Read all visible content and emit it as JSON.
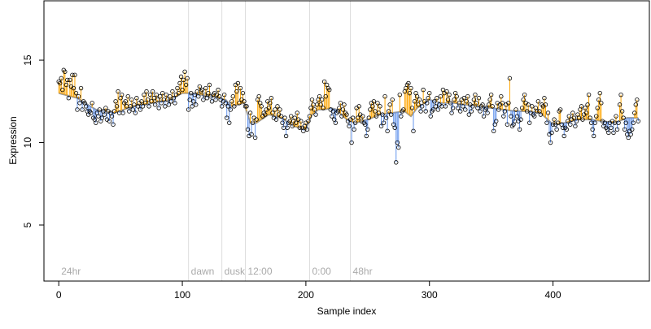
{
  "chart_data": {
    "type": "scatter",
    "title": "",
    "xlabel": "Sample index",
    "ylabel": "Expression",
    "xlim": [
      -12,
      478
    ],
    "ylim": [
      1.6,
      18.6
    ],
    "xticks": [
      0,
      100,
      200,
      300,
      400
    ],
    "yticks": [
      5,
      10,
      15
    ],
    "grid": false,
    "baseline_color": "#999999",
    "above_color": "#ffa500",
    "below_color": "#6495ed",
    "point_stroke": "#000000",
    "segments": [
      {
        "label": "24hr",
        "x": 0
      },
      {
        "label": "dawn",
        "x": 105
      },
      {
        "label": "dusk",
        "x": 132
      },
      {
        "label": "12:00",
        "x": 151
      },
      {
        "label": "0:00",
        "x": 203
      },
      {
        "label": "48hr",
        "x": 236
      }
    ],
    "series": [
      {
        "values": [
          13.7,
          13.6,
          13.9,
          13.2,
          14.4,
          14.3,
          13.5,
          13.8,
          12.7,
          13.8,
          13.4,
          14.1,
          13.3,
          14.1,
          13.0,
          12.0,
          12.8,
          12.4,
          13.3,
          12.0,
          12.5,
          12.4,
          12.2,
          11.9,
          11.7,
          11.9,
          11.8,
          12.4,
          11.5,
          11.4,
          11.2,
          11.8,
          11.6,
          12.0,
          11.3,
          11.5,
          11.9,
          11.7,
          12.1,
          11.4,
          11.9,
          11.3,
          11.8,
          11.6,
          11.1,
          11.9,
          12.5,
          12.2,
          13.1,
          11.8,
          12.7,
          12.9,
          11.8,
          12.4,
          12.5,
          12.2,
          12.8,
          11.9,
          12.2,
          12.6,
          12.0,
          12.3,
          11.8,
          12.7,
          12.2,
          12.4,
          12.0,
          12.5,
          12.2,
          12.9,
          12.4,
          13.1,
          12.6,
          12.2,
          12.9,
          12.5,
          13.1,
          12.7,
          12.3,
          12.9,
          12.6,
          12.1,
          12.8,
          12.4,
          13.0,
          12.6,
          12.2,
          12.9,
          12.6,
          12.3,
          12.8,
          12.5,
          13.1,
          12.7,
          12.4,
          12.9,
          13.3,
          13.0,
          13.6,
          14.0,
          13.2,
          13.8,
          14.3,
          13.5,
          13.9,
          12.0,
          12.6,
          13.0,
          12.2,
          12.5,
          12.9,
          12.3,
          13.1,
          12.8,
          13.4,
          13.1,
          13.2,
          12.6,
          12.9,
          13.3,
          12.7,
          13.0,
          13.5,
          12.8,
          12.5,
          12.9,
          13.0,
          12.6,
          12.9,
          13.2,
          12.8,
          12.6,
          12.2,
          12.5,
          12.9,
          12.4,
          11.5,
          12.2,
          11.2,
          12.0,
          12.5,
          12.8,
          12.2,
          13.5,
          13.1,
          13.6,
          12.4,
          13.3,
          12.6,
          13.0,
          12.5,
          12.2,
          12.2,
          10.8,
          10.4,
          11.8,
          10.5,
          11.2,
          11.5,
          10.3,
          11.4,
          12.6,
          12.8,
          12.4,
          12.2,
          11.6,
          11.8,
          11.7,
          12.0,
          12.5,
          12.1,
          12.4,
          12.7,
          11.8,
          11.5,
          12.0,
          11.4,
          12.2,
          11.7,
          12.0,
          11.6,
          11.2,
          10.9,
          11.5,
          10.4,
          10.9,
          11.2,
          11.3,
          11.6,
          11.0,
          11.3,
          11.5,
          11.2,
          11.8,
          11.4,
          10.9,
          11.3,
          10.9,
          10.7,
          11.0,
          11.2,
          10.8,
          11.3,
          11.6,
          12.1,
          12.6,
          12.3,
          12.0,
          11.7,
          12.3,
          12.6,
          12.8,
          12.3,
          12.6,
          12.1,
          13.7,
          12.8,
          13.5,
          13.3,
          13.2,
          12.0,
          11.6,
          11.9,
          11.4,
          11.2,
          11.8,
          11.9,
          12.1,
          12.4,
          11.6,
          12.0,
          12.3,
          11.8,
          11.7,
          11.3,
          11.0,
          11.4,
          10.0,
          11.5,
          10.8,
          11.2,
          12.1,
          11.5,
          12.2,
          11.7,
          11.3,
          11.6,
          11.2,
          11.1,
          10.4,
          10.8,
          11.5,
          12.0,
          12.4,
          12.2,
          12.5,
          11.9,
          11.6,
          12.4,
          11.8,
          12.2,
          11.0,
          11.7,
          11.2,
          12.8,
          11.5,
          10.7,
          11.9,
          12.3,
          11.7,
          12.6,
          11.1,
          10.9,
          8.8,
          10.0,
          9.7,
          12.9,
          11.6,
          11.9,
          12.0,
          13.1,
          13.3,
          13.5,
          13.6,
          13.0,
          13.3,
          12.1,
          10.7,
          12.5,
          13.0,
          12.8,
          12.3,
          12.6,
          11.9,
          12.2,
          13.2,
          12.5,
          11.9,
          12.4,
          12.7,
          13.0,
          11.6,
          11.9,
          12.0,
          12.5,
          12.2,
          12.7,
          12.0,
          12.3,
          12.8,
          12.2,
          13.2,
          13.0,
          12.2,
          13.1,
          12.6,
          12.9,
          12.4,
          11.8,
          12.1,
          12.6,
          13.0,
          12.8,
          12.1,
          12.4,
          11.9,
          12.6,
          12.2,
          12.7,
          12.0,
          12.5,
          12.8,
          11.7,
          12.3,
          11.9,
          12.2,
          12.6,
          12.9,
          12.4,
          12.1,
          12.7,
          11.9,
          12.2,
          12.3,
          11.6,
          12.0,
          12.1,
          11.8,
          12.3,
          12.6,
          12.9,
          12.2,
          10.7,
          11.1,
          11.3,
          12.4,
          12.0,
          12.3,
          12.8,
          12.4,
          11.6,
          11.9,
          12.3,
          11.1,
          12.4,
          13.9,
          11.6,
          11.0,
          11.1,
          11.3,
          12.0,
          11.6,
          11.3,
          10.8,
          11.4,
          12.1,
          12.6,
          12.9,
          12.4,
          11.9,
          12.3,
          11.2,
          11.8,
          12.2,
          11.7,
          11.6,
          12.1,
          11.9,
          12.5,
          11.9,
          11.7,
          12.3,
          12.2,
          12.7,
          12.3,
          11.2,
          11.8,
          10.5,
          10.0,
          10.6,
          11.1,
          11.4,
          11.1,
          10.8,
          11.2,
          11.9,
          12.0,
          11.1,
          10.9,
          10.4,
          10.9,
          10.8,
          11.3,
          11.6,
          11.1,
          11.4,
          11.8,
          11.5,
          11.0,
          11.3,
          11.7,
          11.5,
          12.0,
          12.2,
          11.4,
          11.7,
          12.1,
          11.8,
          12.3,
          12.9,
          11.5,
          11.2,
          10.8,
          10.4,
          11.2,
          11.6,
          12.1,
          12.6,
          13.0,
          12.4,
          11.3,
          11.0,
          11.2,
          10.9,
          10.8,
          10.6,
          11.2,
          10.9,
          11.3,
          10.6,
          11.2,
          11.6,
          10.8,
          11.2,
          12.3,
          12.9,
          11.9,
          11.5,
          10.8,
          11.2,
          10.5,
          10.3,
          10.7,
          10.5,
          10.8,
          11.2,
          11.8,
          12.3,
          12.6,
          11.3
        ]
      }
    ],
    "baseline": {
      "x": [
        0,
        15,
        30,
        45,
        60,
        75,
        90,
        100,
        105,
        115,
        125,
        135,
        140,
        145,
        150,
        155,
        160,
        170,
        180,
        190,
        195,
        200,
        205,
        210,
        215,
        220,
        225,
        230,
        235,
        240,
        250,
        260,
        270,
        280,
        285,
        290,
        300,
        310,
        320,
        330,
        340,
        350,
        360,
        370,
        380,
        390,
        400,
        410,
        420,
        430,
        440,
        450,
        460
      ],
      "y": [
        13.0,
        12.7,
        12.0,
        11.8,
        12.2,
        12.4,
        12.6,
        13.0,
        13.0,
        12.9,
        12.8,
        12.6,
        12.2,
        12.3,
        12.4,
        11.2,
        11.2,
        11.7,
        11.5,
        11.0,
        10.9,
        10.8,
        11.7,
        12.0,
        12.0,
        12.1,
        12.0,
        11.6,
        11.3,
        11.2,
        11.4,
        11.7,
        11.8,
        11.9,
        11.6,
        12.1,
        12.6,
        12.4,
        12.4,
        12.3,
        12.2,
        12.1,
        12.0,
        11.9,
        11.9,
        11.8,
        11.1,
        11.2,
        11.4,
        11.4,
        11.3,
        11.2,
        11.5
      ]
    }
  }
}
